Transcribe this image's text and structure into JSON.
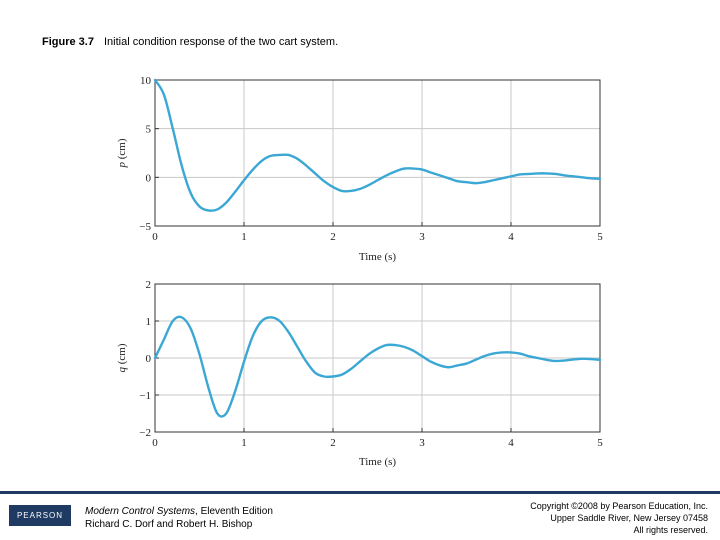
{
  "caption": {
    "figure_label": "Figure 3.7",
    "text": "Initial condition response of the two cart system."
  },
  "colors": {
    "curve": "#3aa7d4",
    "grid": "#c8c8c8",
    "frame": "#333333",
    "footer_bar": "#1f3a63"
  },
  "chart_data": [
    {
      "type": "line",
      "xlabel": "Time (s)",
      "ylabel": "p (cm)",
      "xlim": [
        0,
        5
      ],
      "ylim": [
        -5,
        10
      ],
      "xticks": [
        0,
        1,
        2,
        3,
        4,
        5
      ],
      "xtick_labels": [
        "0",
        "1",
        "2",
        "3",
        "4",
        "5"
      ],
      "yticks": [
        -5,
        0,
        5,
        10
      ],
      "ytick_labels": [
        "−5",
        "0",
        "5",
        "10"
      ],
      "grid": true,
      "series": [
        {
          "x": [
            0,
            0.1,
            0.2,
            0.3,
            0.4,
            0.5,
            0.6,
            0.7,
            0.8,
            0.9,
            1.0,
            1.1,
            1.2,
            1.3,
            1.4,
            1.5,
            1.6,
            1.7,
            1.8,
            1.9,
            2.0,
            2.1,
            2.2,
            2.3,
            2.4,
            2.5,
            2.6,
            2.7,
            2.8,
            2.9,
            3.0,
            3.1,
            3.2,
            3.3,
            3.4,
            3.5,
            3.6,
            3.7,
            3.8,
            3.9,
            4.0,
            4.1,
            4.2,
            4.3,
            4.4,
            4.5,
            4.6,
            4.7,
            4.8,
            4.9,
            5.0
          ],
          "y": [
            10,
            8.5,
            5.0,
            1.2,
            -1.6,
            -3.0,
            -3.4,
            -3.3,
            -2.6,
            -1.5,
            -0.3,
            0.8,
            1.7,
            2.2,
            2.3,
            2.3,
            1.9,
            1.2,
            0.4,
            -0.4,
            -1.0,
            -1.4,
            -1.4,
            -1.2,
            -0.8,
            -0.3,
            0.2,
            0.6,
            0.9,
            0.9,
            0.8,
            0.5,
            0.2,
            -0.1,
            -0.4,
            -0.5,
            -0.6,
            -0.5,
            -0.3,
            -0.1,
            0.1,
            0.3,
            0.35,
            0.4,
            0.4,
            0.35,
            0.2,
            0.1,
            0.0,
            -0.1,
            -0.15
          ]
        }
      ]
    },
    {
      "type": "line",
      "xlabel": "Time (s)",
      "ylabel": "q (cm)",
      "xlim": [
        0,
        5
      ],
      "ylim": [
        -2,
        2
      ],
      "xticks": [
        0,
        1,
        2,
        3,
        4,
        5
      ],
      "xtick_labels": [
        "0",
        "1",
        "2",
        "3",
        "4",
        "5"
      ],
      "yticks": [
        -2,
        -1,
        0,
        1,
        2
      ],
      "ytick_labels": [
        "−2",
        "−1",
        "0",
        "1",
        "2"
      ],
      "grid": true,
      "series": [
        {
          "x": [
            0,
            0.1,
            0.2,
            0.3,
            0.4,
            0.5,
            0.6,
            0.7,
            0.8,
            0.9,
            1.0,
            1.1,
            1.2,
            1.3,
            1.4,
            1.5,
            1.6,
            1.7,
            1.8,
            1.9,
            2.0,
            2.1,
            2.2,
            2.3,
            2.4,
            2.5,
            2.6,
            2.7,
            2.8,
            2.9,
            3.0,
            3.1,
            3.2,
            3.3,
            3.4,
            3.5,
            3.6,
            3.7,
            3.8,
            3.9,
            4.0,
            4.1,
            4.2,
            4.3,
            4.4,
            4.5,
            4.6,
            4.7,
            4.8,
            4.9,
            5.0
          ],
          "y": [
            0,
            0.5,
            1.0,
            1.1,
            0.8,
            0.1,
            -0.8,
            -1.5,
            -1.5,
            -0.9,
            -0.1,
            0.6,
            1.0,
            1.1,
            1.0,
            0.7,
            0.3,
            -0.1,
            -0.4,
            -0.5,
            -0.5,
            -0.45,
            -0.3,
            -0.1,
            0.1,
            0.25,
            0.35,
            0.35,
            0.3,
            0.2,
            0.05,
            -0.1,
            -0.2,
            -0.25,
            -0.2,
            -0.15,
            -0.05,
            0.05,
            0.12,
            0.15,
            0.15,
            0.12,
            0.05,
            0.0,
            -0.05,
            -0.08,
            -0.07,
            -0.04,
            -0.02,
            -0.03,
            -0.05
          ]
        }
      ]
    }
  ],
  "footer": {
    "logo_text": "PEARSON",
    "book_title": "Modern Control Systems",
    "book_edition": ", Eleventh Edition",
    "book_authors": "Richard C. Dorf and Robert H. Bishop",
    "copyright_line1": "Copyright ©2008 by Pearson Education, Inc.",
    "copyright_line2": "Upper Saddle River, New Jersey 07458",
    "copyright_line3": "All rights reserved."
  }
}
